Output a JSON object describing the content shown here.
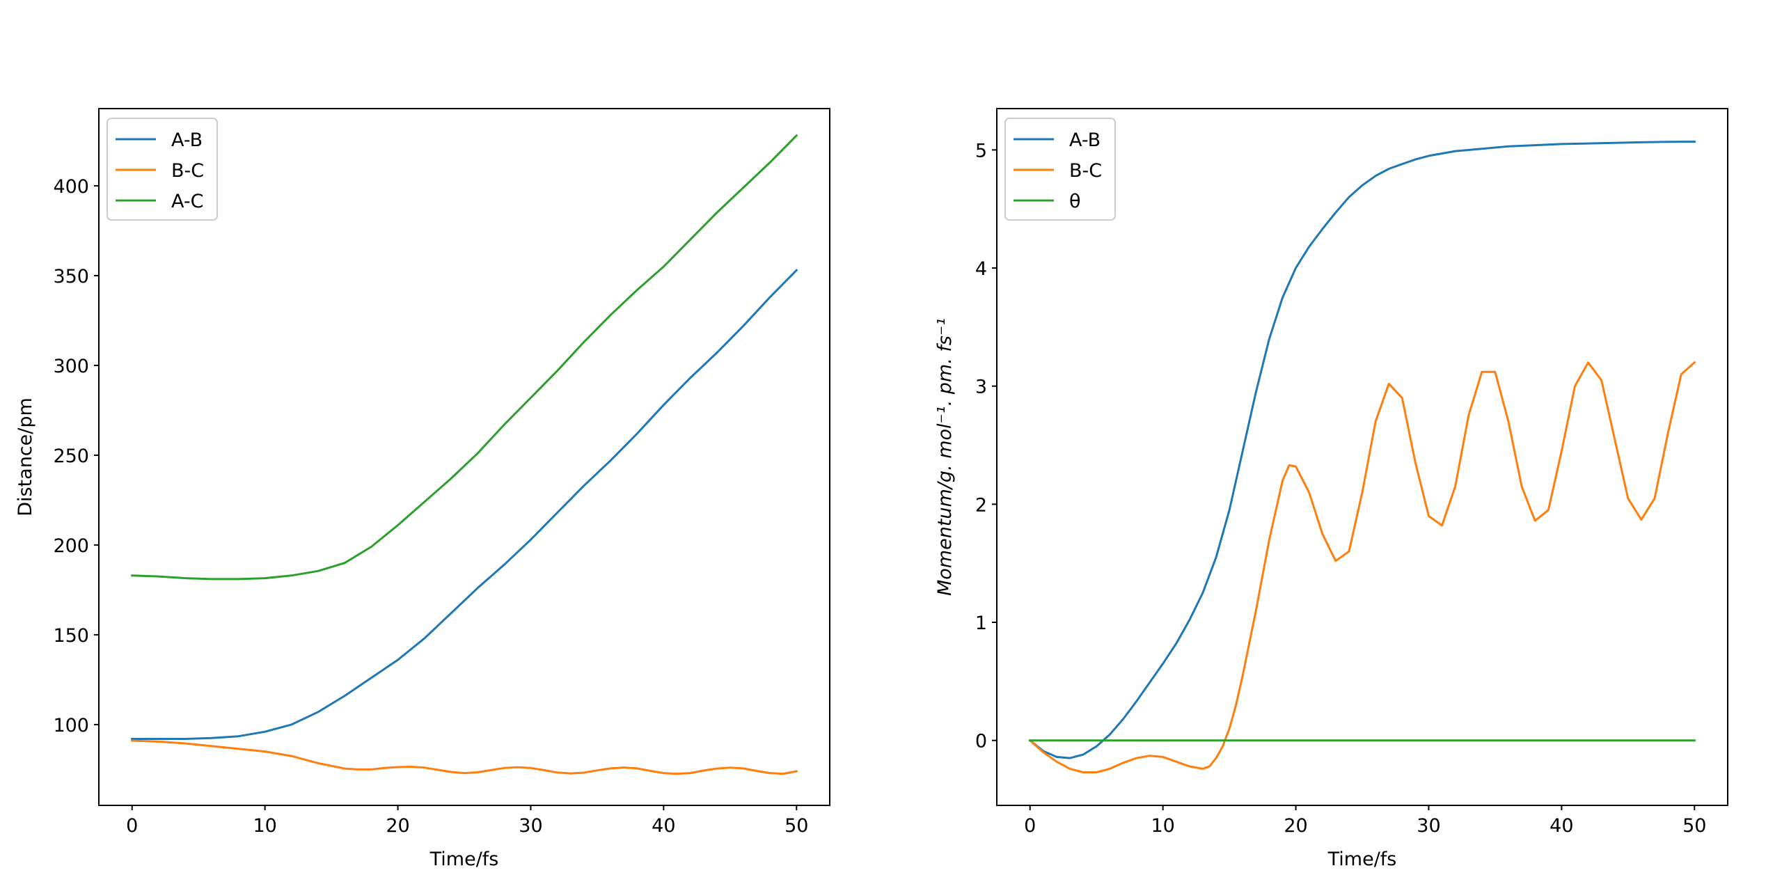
{
  "chart_data": [
    {
      "type": "line",
      "xlabel": "Time/fs",
      "ylabel": "Distance/pm",
      "xlim": [
        -2.5,
        52.5
      ],
      "ylim": [
        55,
        443
      ],
      "xticks": [
        0,
        10,
        20,
        30,
        40,
        50
      ],
      "xtick_labels": [
        "0",
        "10",
        "20",
        "30",
        "40",
        "50"
      ],
      "yticks": [
        100,
        150,
        200,
        250,
        300,
        350,
        400
      ],
      "ytick_labels": [
        "100",
        "150",
        "200",
        "250",
        "300",
        "350",
        "400"
      ],
      "grid": false,
      "legend": "top-left",
      "series": [
        {
          "name": "A-B",
          "color": "#1f77b4",
          "x": [
            0,
            2,
            4,
            6,
            8,
            10,
            12,
            14,
            16,
            18,
            20,
            22,
            24,
            26,
            28,
            30,
            32,
            34,
            36,
            38,
            40,
            42,
            44,
            46,
            48,
            50
          ],
          "y": [
            92,
            92,
            92,
            92.5,
            93.5,
            96,
            100,
            107,
            116,
            126,
            136,
            148,
            162,
            176,
            189,
            203,
            218,
            233,
            247,
            262,
            278,
            293,
            307,
            322,
            338,
            353
          ]
        },
        {
          "name": "B-C",
          "color": "#ff7f0e",
          "x": [
            0,
            2,
            4,
            6,
            8,
            10,
            12,
            14,
            16,
            17,
            18,
            19,
            20,
            21,
            22,
            23,
            24,
            25,
            26,
            27,
            28,
            29,
            30,
            31,
            32,
            33,
            34,
            35,
            36,
            37,
            38,
            39,
            40,
            41,
            42,
            43,
            44,
            45,
            46,
            47,
            48,
            49,
            50
          ],
          "y": [
            91,
            90.5,
            89.5,
            88,
            86.5,
            85,
            82.5,
            78.5,
            75.5,
            75,
            75,
            75.8,
            76.3,
            76.5,
            76,
            74.8,
            73.6,
            73,
            73.4,
            74.6,
            75.8,
            76.2,
            75.8,
            74.6,
            73.3,
            72.8,
            73.2,
            74.5,
            75.6,
            76.1,
            75.6,
            74.2,
            73,
            72.6,
            73,
            74.4,
            75.5,
            76,
            75.6,
            74.2,
            73,
            72.6,
            74
          ]
        },
        {
          "name": "A-C",
          "color": "#2ca02c",
          "x": [
            0,
            2,
            4,
            6,
            8,
            10,
            12,
            14,
            16,
            18,
            20,
            22,
            24,
            26,
            28,
            30,
            32,
            34,
            36,
            38,
            40,
            42,
            44,
            46,
            48,
            50
          ],
          "y": [
            183,
            182.5,
            181.5,
            181,
            181,
            181.5,
            183,
            185.5,
            190,
            199,
            211,
            224,
            237,
            251,
            267,
            282,
            297,
            313,
            328,
            342,
            355,
            370,
            385,
            399,
            413,
            428
          ]
        }
      ]
    },
    {
      "type": "line",
      "xlabel": "Time/fs",
      "ylabel": "Momentum/g. mol⁻¹. pm. fs⁻¹",
      "xlim": [
        -2.5,
        52.5
      ],
      "ylim": [
        -0.55,
        5.35
      ],
      "xticks": [
        0,
        10,
        20,
        30,
        40,
        50
      ],
      "xtick_labels": [
        "0",
        "10",
        "20",
        "30",
        "40",
        "50"
      ],
      "yticks": [
        0,
        1,
        2,
        3,
        4,
        5
      ],
      "ytick_labels": [
        "0",
        "1",
        "2",
        "3",
        "4",
        "5"
      ],
      "grid": false,
      "legend": "top-left",
      "series": [
        {
          "name": "A-B",
          "color": "#1f77b4",
          "x": [
            0,
            1,
            2,
            3,
            4,
            5,
            6,
            7,
            8,
            9,
            10,
            11,
            12,
            13,
            14,
            15,
            16,
            17,
            18,
            19,
            20,
            21,
            22,
            23,
            24,
            25,
            26,
            27,
            28,
            29,
            30,
            32,
            34,
            36,
            38,
            40,
            42,
            44,
            46,
            48,
            50
          ],
          "y": [
            0,
            -0.09,
            -0.14,
            -0.15,
            -0.12,
            -0.05,
            0.05,
            0.18,
            0.33,
            0.49,
            0.65,
            0.82,
            1.02,
            1.25,
            1.55,
            1.95,
            2.45,
            2.95,
            3.4,
            3.75,
            4.0,
            4.18,
            4.33,
            4.47,
            4.6,
            4.7,
            4.78,
            4.84,
            4.88,
            4.92,
            4.95,
            4.99,
            5.01,
            5.03,
            5.04,
            5.05,
            5.055,
            5.06,
            5.065,
            5.068,
            5.07
          ]
        },
        {
          "name": "B-C",
          "color": "#ff7f0e",
          "x": [
            0,
            1,
            2,
            3,
            4,
            5,
            6,
            7,
            8,
            9,
            10,
            11,
            12,
            13,
            13.5,
            14,
            14.5,
            15,
            15.5,
            16,
            17,
            18,
            19,
            19.5,
            20,
            21,
            22,
            23,
            24,
            25,
            26,
            27,
            28,
            29,
            30,
            31,
            32,
            33,
            34,
            35,
            36,
            37,
            38,
            39,
            40,
            41,
            42,
            43,
            44,
            45,
            46,
            47,
            48,
            49,
            50
          ],
          "y": [
            0,
            -0.1,
            -0.18,
            -0.24,
            -0.27,
            -0.27,
            -0.24,
            -0.19,
            -0.15,
            -0.13,
            -0.14,
            -0.18,
            -0.22,
            -0.24,
            -0.22,
            -0.15,
            -0.05,
            0.1,
            0.3,
            0.55,
            1.1,
            1.7,
            2.2,
            2.33,
            2.32,
            2.1,
            1.75,
            1.52,
            1.6,
            2.1,
            2.7,
            3.02,
            2.9,
            2.35,
            1.9,
            1.82,
            2.15,
            2.75,
            3.12,
            3.12,
            2.7,
            2.15,
            1.86,
            1.95,
            2.45,
            3.0,
            3.2,
            3.05,
            2.55,
            2.05,
            1.87,
            2.05,
            2.6,
            3.1,
            3.2
          ]
        },
        {
          "name": "θ",
          "color": "#2ca02c",
          "x": [
            0,
            50
          ],
          "y": [
            0,
            0
          ]
        }
      ]
    }
  ]
}
